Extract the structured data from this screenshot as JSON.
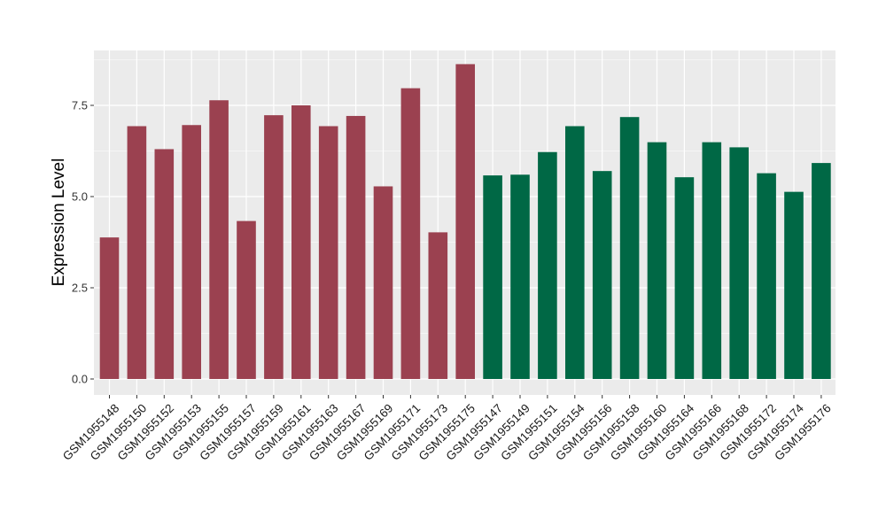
{
  "chart_data": {
    "type": "bar",
    "title": "",
    "xlabel": "",
    "ylabel": "Expression Level",
    "ylim": [
      0,
      9.1
    ],
    "yticks": [
      0.0,
      2.5,
      5.0,
      7.5
    ],
    "ytick_labels": [
      "0.0",
      "2.5",
      "5.0",
      "7.5"
    ],
    "grid": true,
    "legend": "none",
    "background": "#EBEBEB",
    "grid_color": "#FFFFFF",
    "group_colors": [
      "#9B4150",
      "#006845"
    ],
    "categories": [
      "GSM1955148",
      "GSM1955150",
      "GSM1955152",
      "GSM1955153",
      "GSM1955155",
      "GSM1955157",
      "GSM1955159",
      "GSM1955161",
      "GSM1955163",
      "GSM1955167",
      "GSM1955169",
      "GSM1955171",
      "GSM1955173",
      "GSM1955175",
      "GSM1955147",
      "GSM1955149",
      "GSM1955151",
      "GSM1955154",
      "GSM1955156",
      "GSM1955158",
      "GSM1955160",
      "GSM1955164",
      "GSM1955166",
      "GSM1955168",
      "GSM1955172",
      "GSM1955174",
      "GSM1955176"
    ],
    "values": [
      3.88,
      6.93,
      6.3,
      6.96,
      7.64,
      4.33,
      7.23,
      7.5,
      6.93,
      7.21,
      5.28,
      7.97,
      4.02,
      8.63,
      5.58,
      5.6,
      6.22,
      6.93,
      5.7,
      7.18,
      6.49,
      5.53,
      6.49,
      6.35,
      5.64,
      5.13,
      5.92
    ],
    "groups": [
      0,
      0,
      0,
      0,
      0,
      0,
      0,
      0,
      0,
      0,
      0,
      0,
      0,
      0,
      1,
      1,
      1,
      1,
      1,
      1,
      1,
      1,
      1,
      1,
      1,
      1,
      1
    ]
  }
}
